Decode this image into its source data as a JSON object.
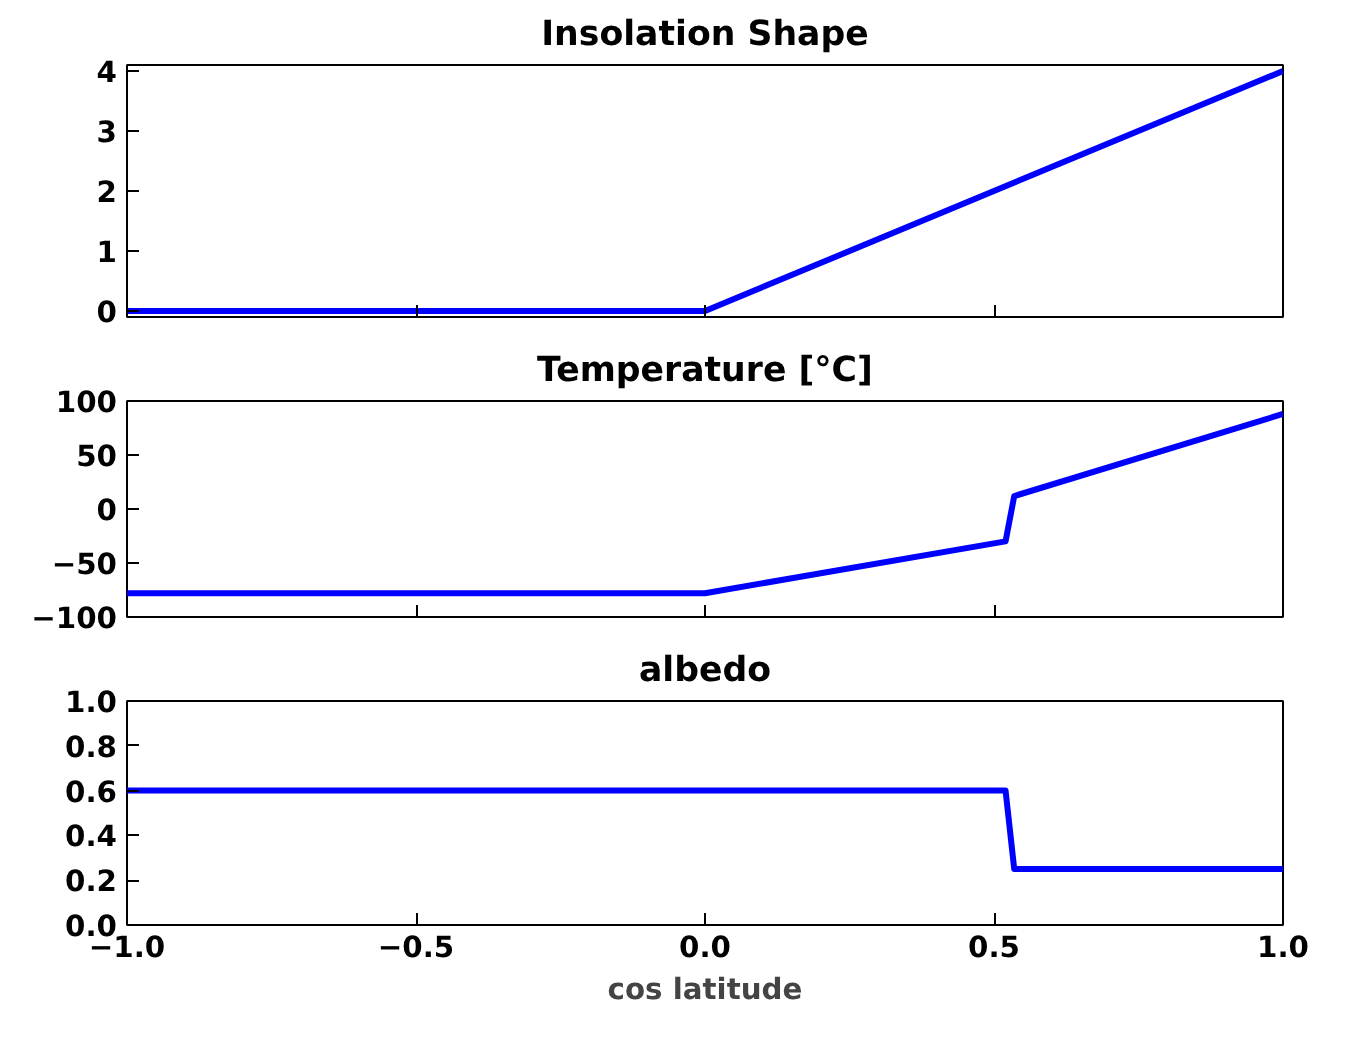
{
  "chart_data": [
    {
      "type": "line",
      "title": "Insolation Shape",
      "x": [
        -1.0,
        0.0,
        1.0
      ],
      "series": [
        {
          "color": "#0000ff",
          "values": [
            0,
            0,
            4
          ]
        }
      ],
      "xlim": [
        -1,
        1
      ],
      "ylim": [
        -0.1,
        4.1
      ],
      "xticks": [
        {
          "value": -1,
          "label": null
        },
        {
          "value": -0.5,
          "label": null
        },
        {
          "value": 0,
          "label": null
        },
        {
          "value": 0.5,
          "label": null
        },
        {
          "value": 1,
          "label": null
        }
      ],
      "yticks": [
        0,
        1,
        2,
        3,
        4
      ],
      "tick_labels": "y",
      "grid": false
    },
    {
      "type": "line",
      "title": "Temperature [°C]",
      "x": [
        -1.0,
        0.0,
        0.52,
        0.535,
        1.0
      ],
      "series": [
        {
          "color": "#0000ff",
          "values": [
            -78,
            -78,
            -30,
            12,
            88
          ]
        }
      ],
      "xlim": [
        -1,
        1
      ],
      "ylim": [
        -100,
        100
      ],
      "xticks": [
        {
          "value": -1,
          "label": null
        },
        {
          "value": -0.5,
          "label": null
        },
        {
          "value": 0,
          "label": null
        },
        {
          "value": 0.5,
          "label": null
        },
        {
          "value": 1,
          "label": null
        }
      ],
      "yticks": [
        {
          "value": -100,
          "label": "−100"
        },
        {
          "value": -50,
          "label": "−50"
        },
        0,
        50,
        100
      ],
      "tick_labels": "y",
      "grid": false
    },
    {
      "type": "line",
      "title": "albedo",
      "xlabel": "cos latitude",
      "x": [
        -1.0,
        0.52,
        0.535,
        1.0
      ],
      "series": [
        {
          "color": "#0000ff",
          "values": [
            0.6,
            0.6,
            0.25,
            0.25
          ]
        }
      ],
      "xlim": [
        -1,
        1
      ],
      "ylim": [
        0,
        1
      ],
      "xticks": [
        {
          "value": -1,
          "label": "−1.0"
        },
        {
          "value": -0.5,
          "label": "−0.5"
        },
        {
          "value": 0,
          "label": "0.0"
        },
        {
          "value": 0.5,
          "label": "0.5"
        },
        {
          "value": 1,
          "label": "1.0"
        }
      ],
      "yticks": [
        {
          "value": 0,
          "label": "0.0"
        },
        {
          "value": 0.2,
          "label": "0.2"
        },
        {
          "value": 0.4,
          "label": "0.4"
        },
        {
          "value": 0.6,
          "label": "0.6"
        },
        {
          "value": 0.8,
          "label": "0.8"
        },
        {
          "value": 1,
          "label": "1.0"
        }
      ],
      "grid": false
    }
  ]
}
